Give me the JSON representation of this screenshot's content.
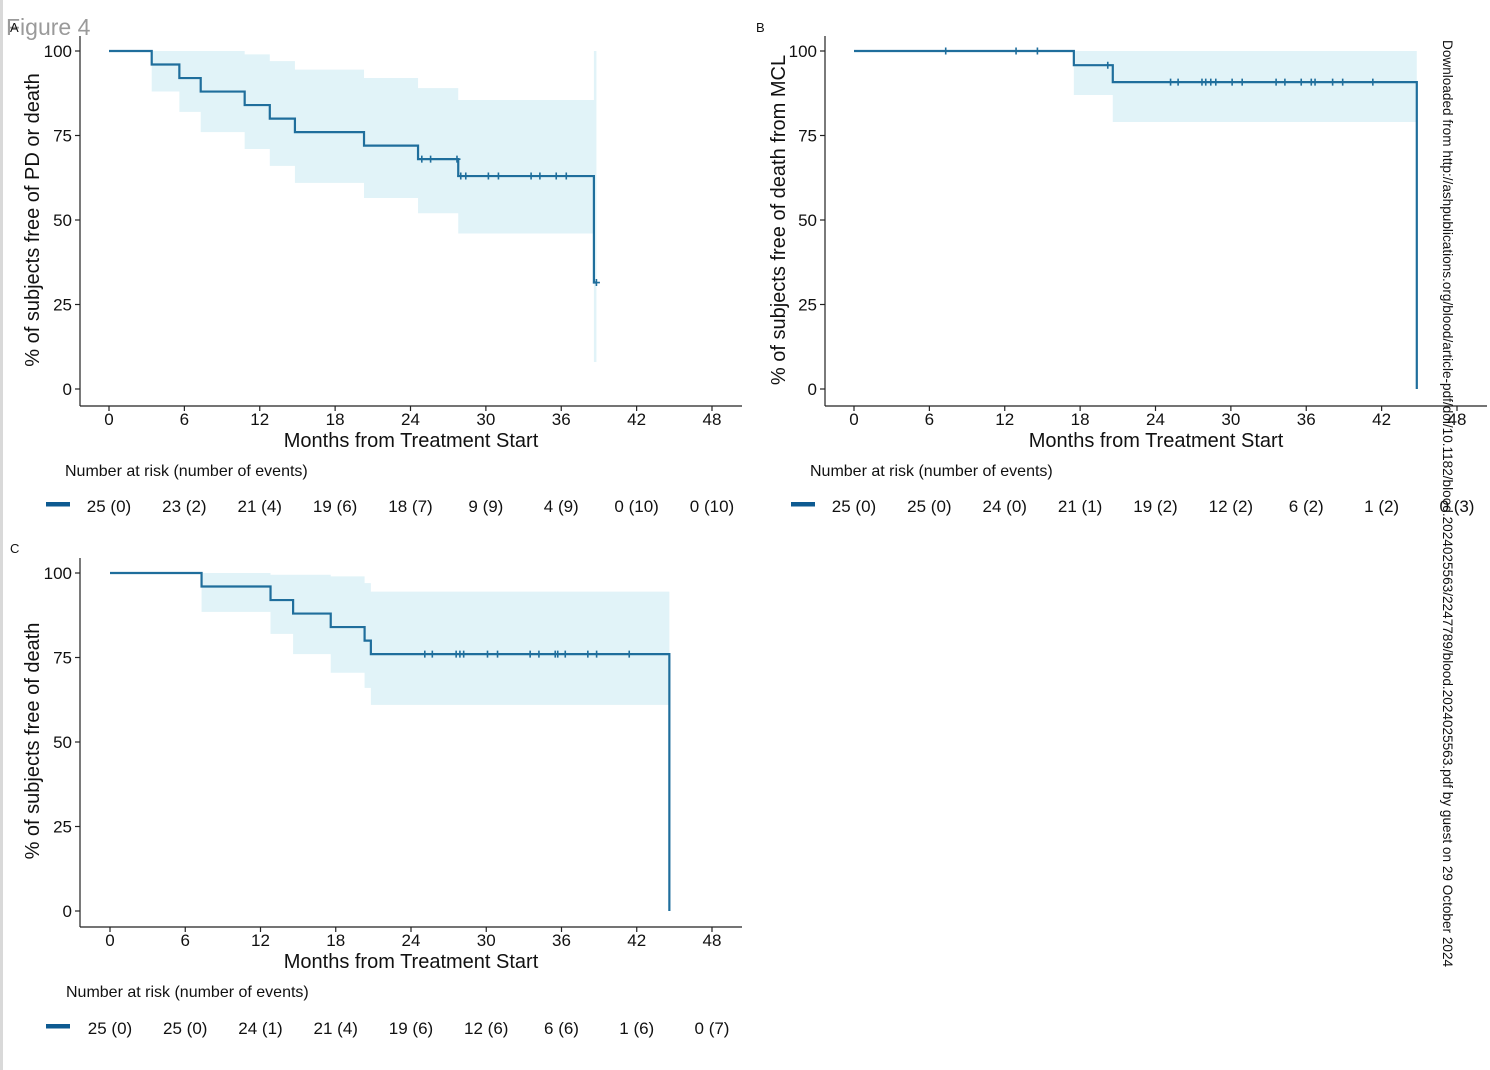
{
  "figure_title": "Figure 4",
  "watermark": "Downloaded from http://ashpublications.org/blood/article-pdf/doi/10.1182/blood.2024025563/2247789/blood.2024025563.pdf by guest on 29 October 2024",
  "colors": {
    "line": "#1f6e9c",
    "band": "#e1f3f8",
    "axis": "#222222",
    "risk_bar": "#0d5a91"
  },
  "chart_data": [
    {
      "panel": "A",
      "type": "line",
      "subtype": "kaplan-meier",
      "xlabel": "Months from Treatment Start",
      "ylabel": "% of subjects free of PD or death",
      "xlim": [
        0,
        48
      ],
      "ylim": [
        0,
        100
      ],
      "xticks": [
        0,
        6,
        12,
        18,
        24,
        30,
        36,
        42,
        48
      ],
      "yticks": [
        0,
        25,
        50,
        75,
        100
      ],
      "steps": [
        [
          0,
          100
        ],
        [
          3.4,
          96
        ],
        [
          5.6,
          92
        ],
        [
          7.3,
          88
        ],
        [
          10.8,
          84
        ],
        [
          12.8,
          80
        ],
        [
          14.8,
          76
        ],
        [
          20.3,
          72
        ],
        [
          24.6,
          68
        ],
        [
          27.8,
          63
        ],
        [
          38.6,
          31.5
        ],
        [
          38.8,
          31.5
        ]
      ],
      "ci_steps": [
        [
          0,
          100,
          100
        ],
        [
          3.4,
          100,
          88
        ],
        [
          5.6,
          100,
          82
        ],
        [
          7.3,
          100,
          76
        ],
        [
          10.8,
          99,
          71
        ],
        [
          12.8,
          97,
          66
        ],
        [
          14.8,
          94.5,
          61
        ],
        [
          20.3,
          92,
          56.5
        ],
        [
          24.6,
          89,
          52
        ],
        [
          27.8,
          85.5,
          46
        ],
        [
          38.6,
          100,
          8
        ],
        [
          38.8,
          100,
          8
        ]
      ],
      "censors": [
        [
          24.9,
          68
        ],
        [
          25.6,
          68
        ],
        [
          27.7,
          68
        ],
        [
          28.0,
          63
        ],
        [
          28.4,
          63
        ],
        [
          30.2,
          63
        ],
        [
          31.0,
          63
        ],
        [
          33.6,
          63
        ],
        [
          34.3,
          63
        ],
        [
          35.6,
          63
        ],
        [
          36.4,
          63
        ],
        [
          38.8,
          31.5
        ]
      ],
      "risk_label": "Number at risk (number of events)",
      "risk_values": [
        "25 (0)",
        "23 (2)",
        "21 (4)",
        "19 (6)",
        "18 (7)",
        "9 (9)",
        "4 (9)",
        "0 (10)",
        "0 (10)"
      ]
    },
    {
      "panel": "B",
      "type": "line",
      "subtype": "kaplan-meier",
      "xlabel": "Months from Treatment Start",
      "ylabel": "% of subjects free of death from MCL",
      "xlim": [
        0,
        48
      ],
      "ylim": [
        0,
        100
      ],
      "xticks": [
        0,
        6,
        12,
        18,
        24,
        30,
        36,
        42,
        48
      ],
      "yticks": [
        0,
        25,
        50,
        75,
        100
      ],
      "steps": [
        [
          0,
          100
        ],
        [
          17.5,
          95.8
        ],
        [
          20.6,
          90.8
        ],
        [
          44.8,
          0
        ],
        [
          44.8,
          0
        ]
      ],
      "ci_steps": [
        [
          0,
          100,
          100
        ],
        [
          17.5,
          100,
          87
        ],
        [
          20.6,
          100,
          79
        ],
        [
          44.8,
          0,
          0
        ]
      ],
      "censors": [
        [
          7.3,
          100
        ],
        [
          12.9,
          100
        ],
        [
          14.6,
          100
        ],
        [
          20.2,
          95.8
        ],
        [
          25.2,
          90.8
        ],
        [
          25.8,
          90.8
        ],
        [
          27.7,
          90.8
        ],
        [
          28.0,
          90.8
        ],
        [
          28.4,
          90.8
        ],
        [
          28.8,
          90.8
        ],
        [
          30.1,
          90.8
        ],
        [
          30.9,
          90.8
        ],
        [
          33.6,
          90.8
        ],
        [
          34.3,
          90.8
        ],
        [
          35.6,
          90.8
        ],
        [
          36.4,
          90.8
        ],
        [
          36.7,
          90.8
        ],
        [
          38.1,
          90.8
        ],
        [
          38.9,
          90.8
        ],
        [
          41.3,
          90.8
        ]
      ],
      "risk_label": "Number at risk (number of events)",
      "risk_values": [
        "25 (0)",
        "25 (0)",
        "24 (0)",
        "21 (1)",
        "19 (2)",
        "12 (2)",
        "6 (2)",
        "1 (2)",
        "0 (3)"
      ]
    },
    {
      "panel": "C",
      "type": "line",
      "subtype": "kaplan-meier",
      "xlabel": "Months from Treatment Start",
      "ylabel": "% of subjects free of death",
      "xlim": [
        0,
        48
      ],
      "ylim": [
        0,
        100
      ],
      "xticks": [
        0,
        6,
        12,
        18,
        24,
        30,
        36,
        42,
        48
      ],
      "yticks": [
        0,
        25,
        50,
        75,
        100
      ],
      "steps": [
        [
          0,
          100
        ],
        [
          7.3,
          96
        ],
        [
          12.8,
          92
        ],
        [
          14.6,
          88
        ],
        [
          17.6,
          84
        ],
        [
          20.3,
          80
        ],
        [
          20.8,
          76
        ],
        [
          44.6,
          0
        ],
        [
          44.6,
          0
        ]
      ],
      "ci_steps": [
        [
          0,
          100,
          100
        ],
        [
          7.3,
          100,
          88.5
        ],
        [
          12.8,
          99.5,
          82
        ],
        [
          14.6,
          99.5,
          76
        ],
        [
          17.6,
          99,
          70.5
        ],
        [
          20.3,
          97,
          66
        ],
        [
          20.8,
          94.5,
          61
        ],
        [
          44.6,
          0,
          0
        ]
      ],
      "censors": [
        [
          25.1,
          76
        ],
        [
          25.7,
          76
        ],
        [
          27.6,
          76
        ],
        [
          27.9,
          76
        ],
        [
          28.2,
          76
        ],
        [
          30.1,
          76
        ],
        [
          30.9,
          76
        ],
        [
          33.5,
          76
        ],
        [
          34.2,
          76
        ],
        [
          35.5,
          76
        ],
        [
          35.7,
          76
        ],
        [
          36.3,
          76
        ],
        [
          38.1,
          76
        ],
        [
          38.8,
          76
        ],
        [
          41.4,
          76
        ]
      ],
      "risk_label": "Number at risk (number of events)",
      "risk_values": [
        "25 (0)",
        "25 (0)",
        "24 (1)",
        "21 (4)",
        "19 (6)",
        "12 (6)",
        "6 (6)",
        "1 (6)",
        "0 (7)"
      ]
    }
  ]
}
